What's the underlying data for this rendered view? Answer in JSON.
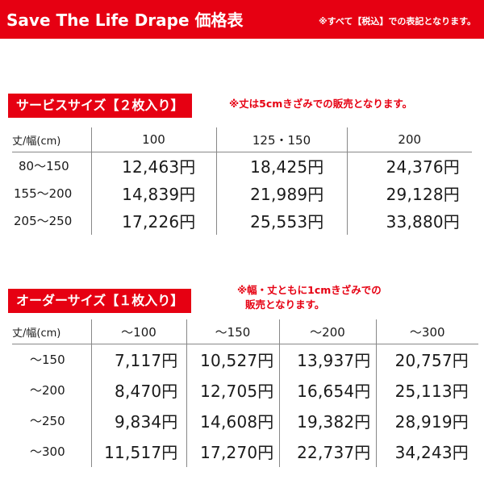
{
  "header": {
    "title": "Save The Life Drape 価格表",
    "note": "※すべて【税込】での表記となります。"
  },
  "service": {
    "label": "サービスサイズ【２枚入り】",
    "note": "※丈は5cmきざみでの販売となります。",
    "corner": "丈/幅(cm)",
    "columns": [
      "100",
      "125・150",
      "200"
    ],
    "rows": [
      {
        "label": "80〜150",
        "prices": [
          "12,463円",
          "18,425円",
          "24,376円"
        ]
      },
      {
        "label": "155〜200",
        "prices": [
          "14,839円",
          "21,989円",
          "29,128円"
        ]
      },
      {
        "label": "205〜250",
        "prices": [
          "17,226円",
          "25,553円",
          "33,880円"
        ]
      }
    ]
  },
  "order": {
    "label": "オーダーサイズ【１枚入り】",
    "note_line1": "※幅・丈ともに1cmきざみでの",
    "note_line2": "販売となります。",
    "corner": "丈/幅(cm)",
    "columns": [
      "〜100",
      "〜150",
      "〜200",
      "〜300"
    ],
    "rows": [
      {
        "label": "〜150",
        "prices": [
          "7,117円",
          "10,527円",
          "13,937円",
          "20,757円"
        ]
      },
      {
        "label": "〜200",
        "prices": [
          "8,470円",
          "12,705円",
          "16,654円",
          "25,113円"
        ]
      },
      {
        "label": "〜250",
        "prices": [
          "9,834円",
          "14,608円",
          "19,382円",
          "28,919円"
        ]
      },
      {
        "label": "〜300",
        "prices": [
          "11,517円",
          "17,270円",
          "22,737円",
          "34,243円"
        ]
      }
    ]
  }
}
